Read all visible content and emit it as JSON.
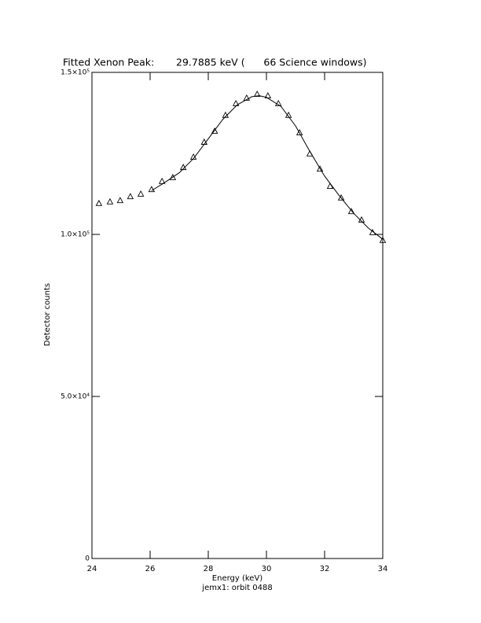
{
  "chart_data": {
    "type": "scatter",
    "title": "Fitted Xenon Peak:       29.7885 keV (      66 Science windows)",
    "x_label": "Energy (keV)",
    "subtitle": "jemx1: orbit 0488",
    "y_label": "Detector counts",
    "xlim": [
      24,
      34
    ],
    "xticks": [
      24,
      26,
      28,
      30,
      32,
      34
    ],
    "ylim": [
      0,
      150000
    ],
    "yticks": [
      0,
      {
        "value": 50000,
        "label": "5.0×10⁴"
      },
      {
        "value": 100000,
        "label": "1.0×10⁵"
      },
      {
        "value": 150000,
        "label": "1.5×10⁵"
      }
    ],
    "color": "#000000",
    "series": [
      {
        "marker": "triangle",
        "x": [
          24.24,
          24.62,
          24.97,
          25.32,
          25.68,
          26.05,
          26.41,
          26.78,
          27.14,
          27.49,
          27.86,
          28.22,
          28.59,
          28.95,
          29.32,
          29.68,
          30.05,
          30.41,
          30.76,
          31.14,
          31.49,
          31.84,
          32.19,
          32.57,
          32.92,
          33.27,
          33.65,
          34.0
        ],
        "values": [
          109500,
          110000,
          110400,
          111600,
          112400,
          113800,
          116300,
          117500,
          120600,
          123800,
          128400,
          131800,
          136700,
          140300,
          142000,
          143200,
          142700,
          140300,
          136700,
          131300,
          124800,
          120100,
          114800,
          111200,
          107000,
          104400,
          100500,
          98100
        ]
      },
      {
        "marker": "line",
        "x": [
          26.05,
          26.5,
          27,
          27.5,
          28,
          28.5,
          29,
          29.5,
          29.75,
          30,
          30.5,
          31,
          31.5,
          32,
          32.5,
          33,
          33.5,
          34
        ],
        "values": [
          113500,
          116000,
          119000,
          123500,
          129500,
          135500,
          140000,
          142500,
          142800,
          142300,
          139500,
          133500,
          125500,
          118000,
          112000,
          106500,
          102000,
          98500
        ]
      }
    ]
  }
}
